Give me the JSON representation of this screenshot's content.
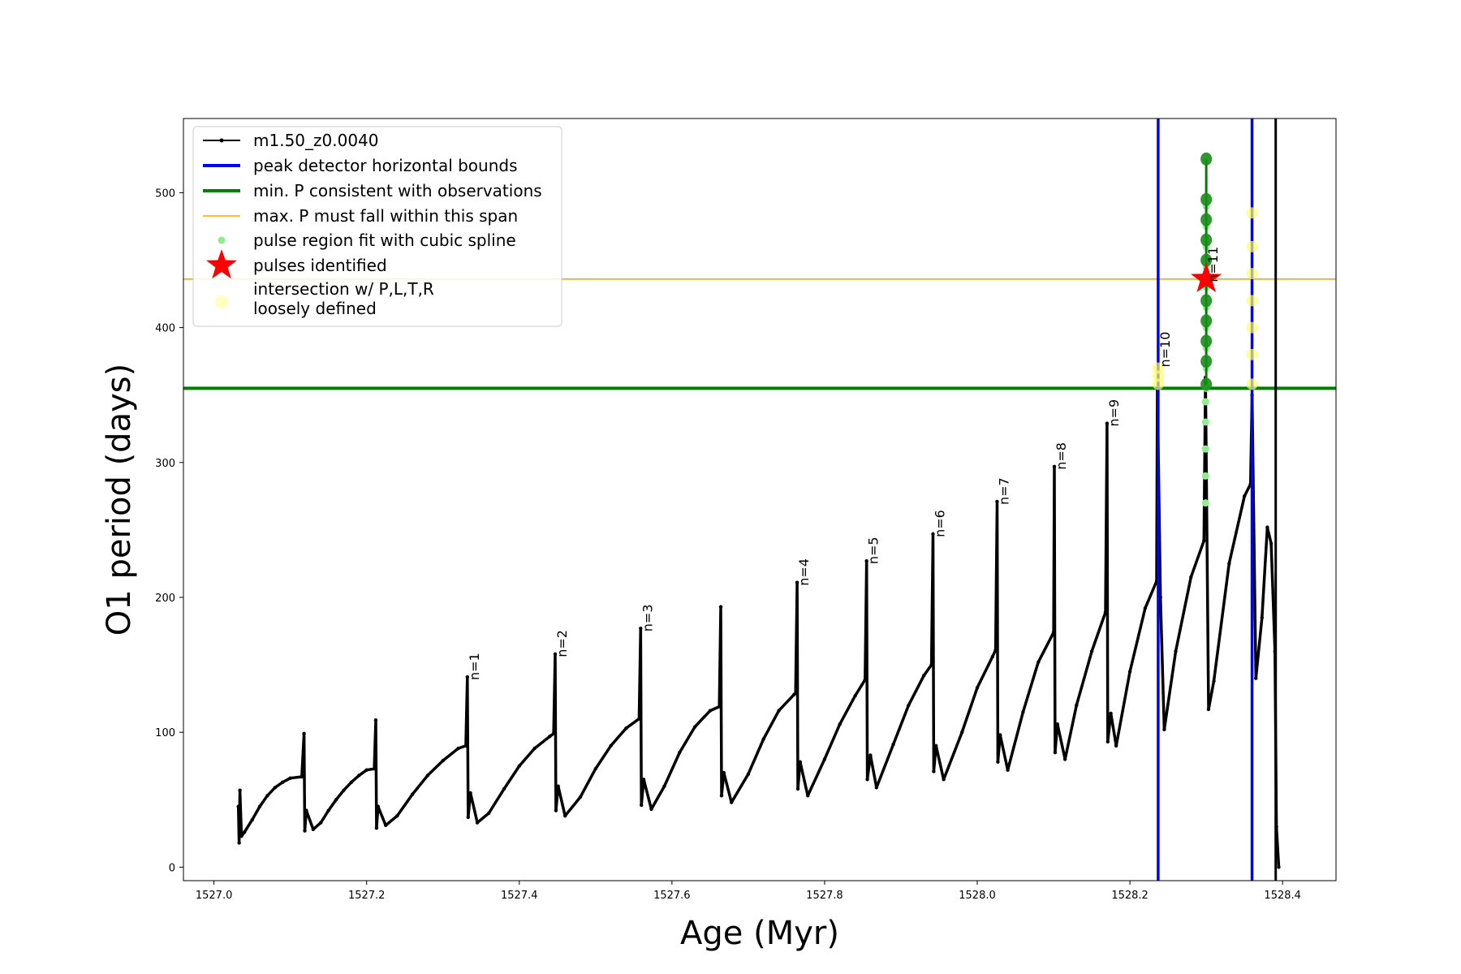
{
  "chart_data": {
    "type": "line",
    "xlabel": "Age (Myr)",
    "ylabel": "O1 period (days)",
    "xlim": [
      1526.96,
      1528.47
    ],
    "ylim": [
      -10,
      555
    ],
    "xticks": [
      1527.0,
      1527.2,
      1527.4,
      1527.6,
      1527.8,
      1528.0,
      1528.2,
      1528.4
    ],
    "xtick_labels": [
      "1527.0",
      "1527.2",
      "1527.4",
      "1527.6",
      "1527.8",
      "1528.0",
      "1528.2",
      "1528.4"
    ],
    "yticks": [
      0,
      100,
      200,
      300,
      400,
      500
    ],
    "ytick_labels": [
      "0",
      "100",
      "200",
      "300",
      "400",
      "500"
    ],
    "legend_position": "upper-left",
    "legend": [
      {
        "label": "m1.50_z0.0040",
        "kind": "line-marker",
        "color": "#000000"
      },
      {
        "label": "peak detector horizontal bounds",
        "kind": "line",
        "color": "#0000ff"
      },
      {
        "label": "min. P consistent with observations",
        "kind": "line",
        "color": "#008000"
      },
      {
        "label": "max. P must fall within this span",
        "kind": "thin-line",
        "color": "#ffa500"
      },
      {
        "label": "pulse region fit with cubic spline",
        "kind": "dot",
        "color": "#90ee90"
      },
      {
        "label": "pulses identified",
        "kind": "star",
        "color": "#ff0000"
      },
      {
        "label": "intersection w/ P,L,T,R\nloosely defined",
        "kind": "circle",
        "color": "#ffff99"
      }
    ],
    "reference_lines": {
      "vertical_blue": [
        1528.237,
        1528.36
      ],
      "vertical_black": [
        1528.391
      ],
      "horizontal_green": 355,
      "horizontal_orange": 436
    },
    "series": [
      {
        "name": "m1.50_z0.0040",
        "color": "#000000",
        "points": [
          [
            1527.032,
            45
          ],
          [
            1527.033,
            18
          ],
          [
            1527.034,
            57
          ],
          [
            1527.036,
            23
          ],
          [
            1527.04,
            26
          ],
          [
            1527.05,
            35
          ],
          [
            1527.06,
            45
          ],
          [
            1527.07,
            53
          ],
          [
            1527.08,
            59
          ],
          [
            1527.09,
            63
          ],
          [
            1527.1,
            66
          ],
          [
            1527.115,
            67
          ],
          [
            1527.118,
            99
          ],
          [
            1527.119,
            27
          ],
          [
            1527.121,
            42
          ],
          [
            1527.13,
            28
          ],
          [
            1527.14,
            33
          ],
          [
            1527.15,
            42
          ],
          [
            1527.16,
            50
          ],
          [
            1527.17,
            57
          ],
          [
            1527.18,
            63
          ],
          [
            1527.19,
            68
          ],
          [
            1527.2,
            72
          ],
          [
            1527.21,
            73
          ],
          [
            1527.212,
            109
          ],
          [
            1527.213,
            29
          ],
          [
            1527.215,
            45
          ],
          [
            1527.225,
            31
          ],
          [
            1527.24,
            38
          ],
          [
            1527.26,
            54
          ],
          [
            1527.28,
            68
          ],
          [
            1527.3,
            79
          ],
          [
            1527.32,
            88
          ],
          [
            1527.33,
            90
          ],
          [
            1527.332,
            141
          ],
          [
            1527.333,
            37
          ],
          [
            1527.336,
            55
          ],
          [
            1527.345,
            33
          ],
          [
            1527.36,
            40
          ],
          [
            1527.38,
            58
          ],
          [
            1527.4,
            75
          ],
          [
            1527.42,
            88
          ],
          [
            1527.44,
            97
          ],
          [
            1527.445,
            99
          ],
          [
            1527.447,
            158
          ],
          [
            1527.448,
            42
          ],
          [
            1527.451,
            60
          ],
          [
            1527.46,
            38
          ],
          [
            1527.48,
            52
          ],
          [
            1527.5,
            73
          ],
          [
            1527.52,
            90
          ],
          [
            1527.54,
            103
          ],
          [
            1527.557,
            110
          ],
          [
            1527.559,
            177
          ],
          [
            1527.56,
            46
          ],
          [
            1527.563,
            65
          ],
          [
            1527.573,
            43
          ],
          [
            1527.59,
            60
          ],
          [
            1527.61,
            85
          ],
          [
            1527.63,
            104
          ],
          [
            1527.65,
            116
          ],
          [
            1527.662,
            119
          ],
          [
            1527.664,
            193
          ],
          [
            1527.665,
            53
          ],
          [
            1527.668,
            70
          ],
          [
            1527.678,
            48
          ],
          [
            1527.7,
            69
          ],
          [
            1527.72,
            95
          ],
          [
            1527.74,
            116
          ],
          [
            1527.76,
            128
          ],
          [
            1527.762,
            129
          ],
          [
            1527.764,
            211
          ],
          [
            1527.765,
            58
          ],
          [
            1527.768,
            78
          ],
          [
            1527.778,
            53
          ],
          [
            1527.8,
            80
          ],
          [
            1527.82,
            106
          ],
          [
            1527.84,
            127
          ],
          [
            1527.853,
            139
          ],
          [
            1527.855,
            227
          ],
          [
            1527.856,
            65
          ],
          [
            1527.86,
            83
          ],
          [
            1527.868,
            59
          ],
          [
            1527.89,
            91
          ],
          [
            1527.91,
            120
          ],
          [
            1527.93,
            142
          ],
          [
            1527.94,
            150
          ],
          [
            1527.942,
            247
          ],
          [
            1527.943,
            71
          ],
          [
            1527.946,
            90
          ],
          [
            1527.956,
            65
          ],
          [
            1527.98,
            100
          ],
          [
            1528.0,
            133
          ],
          [
            1528.02,
            156
          ],
          [
            1528.024,
            161
          ],
          [
            1528.026,
            271
          ],
          [
            1528.027,
            78
          ],
          [
            1528.03,
            98
          ],
          [
            1528.04,
            72
          ],
          [
            1528.06,
            115
          ],
          [
            1528.08,
            152
          ],
          [
            1528.1,
            174
          ],
          [
            1528.101,
            297
          ],
          [
            1528.102,
            85
          ],
          [
            1528.105,
            106
          ],
          [
            1528.115,
            80
          ],
          [
            1528.13,
            120
          ],
          [
            1528.15,
            160
          ],
          [
            1528.168,
            189
          ],
          [
            1528.17,
            329
          ],
          [
            1528.171,
            93
          ],
          [
            1528.175,
            114
          ],
          [
            1528.182,
            90
          ],
          [
            1528.2,
            145
          ],
          [
            1528.22,
            192
          ],
          [
            1528.235,
            212
          ],
          [
            1528.236,
            355
          ],
          [
            1528.24,
            200
          ],
          [
            1528.245,
            102
          ],
          [
            1528.26,
            160
          ],
          [
            1528.28,
            215
          ],
          [
            1528.297,
            242
          ],
          [
            1528.299,
            363
          ],
          [
            1528.303,
            117
          ],
          [
            1528.31,
            138
          ],
          [
            1528.33,
            225
          ],
          [
            1528.35,
            275
          ],
          [
            1528.358,
            284
          ],
          [
            1528.36,
            350
          ],
          [
            1528.365,
            140
          ],
          [
            1528.373,
            185
          ],
          [
            1528.38,
            252
          ],
          [
            1528.385,
            240
          ],
          [
            1528.39,
            160
          ],
          [
            1528.392,
            30
          ],
          [
            1528.395,
            0
          ]
        ]
      }
    ],
    "spline_points": [
      [
        1528.299,
        270
      ],
      [
        1528.299,
        290
      ],
      [
        1528.299,
        310
      ],
      [
        1528.299,
        330
      ],
      [
        1528.299,
        345
      ],
      [
        1528.3,
        355
      ],
      [
        1528.3,
        370
      ],
      [
        1528.3,
        385
      ],
      [
        1528.3,
        400
      ],
      [
        1528.3,
        415
      ],
      [
        1528.3,
        430
      ],
      [
        1528.3,
        445
      ],
      [
        1528.3,
        460
      ],
      [
        1528.3,
        475
      ],
      [
        1528.3,
        490
      ]
    ],
    "green_peak_points": [
      [
        1528.3,
        358
      ],
      [
        1528.3,
        375
      ],
      [
        1528.3,
        390
      ],
      [
        1528.3,
        405
      ],
      [
        1528.3,
        420
      ],
      [
        1528.3,
        435
      ],
      [
        1528.3,
        450
      ],
      [
        1528.3,
        465
      ],
      [
        1528.3,
        480
      ],
      [
        1528.3,
        495
      ],
      [
        1528.3,
        525
      ]
    ],
    "yellow_points": [
      [
        1528.237,
        358
      ],
      [
        1528.237,
        364
      ],
      [
        1528.237,
        370
      ],
      [
        1528.36,
        358
      ],
      [
        1528.36,
        380
      ],
      [
        1528.36,
        400
      ],
      [
        1528.36,
        420
      ],
      [
        1528.36,
        440
      ],
      [
        1528.36,
        460
      ],
      [
        1528.36,
        485
      ]
    ],
    "star_points": [
      [
        1528.3,
        436
      ]
    ],
    "pulse_labels": [
      {
        "text": "n=1",
        "x": 1527.332,
        "y": 141
      },
      {
        "text": "n=2",
        "x": 1527.447,
        "y": 158
      },
      {
        "text": "n=3",
        "x": 1527.559,
        "y": 177
      },
      {
        "text": "n=4",
        "x": 1527.764,
        "y": 211
      },
      {
        "text": "n=5",
        "x": 1527.855,
        "y": 227
      },
      {
        "text": "n=6",
        "x": 1527.942,
        "y": 247
      },
      {
        "text": "n=7",
        "x": 1528.026,
        "y": 271
      },
      {
        "text": "n=8",
        "x": 1528.101,
        "y": 297
      },
      {
        "text": "n=9",
        "x": 1528.17,
        "y": 329
      },
      {
        "text": "n=10",
        "x": 1528.237,
        "y": 373
      },
      {
        "text": "n=11",
        "x": 1528.3,
        "y": 436
      }
    ]
  }
}
